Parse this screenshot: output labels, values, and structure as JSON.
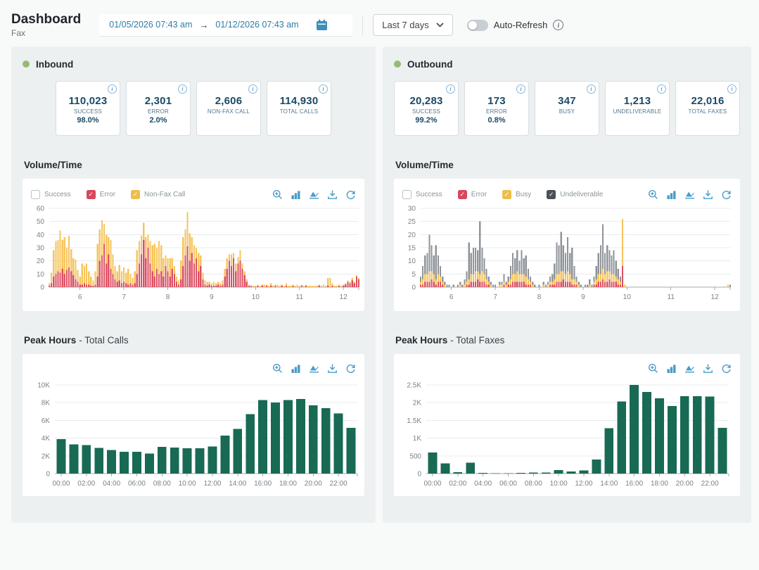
{
  "header": {
    "title": "Dashboard",
    "subtitle": "Fax",
    "date_start": "01/05/2026 07:43 am",
    "date_arrow": "→",
    "date_end": "01/12/2026 07:43 am",
    "range_label": "Last 7 days",
    "auto_refresh_label": "Auto-Refresh",
    "info_icon": "i"
  },
  "inbound": {
    "title": "Inbound",
    "stats": [
      {
        "value": "110,023",
        "label": "SUCCESS",
        "sub": "98.0%"
      },
      {
        "value": "2,301",
        "label": "ERROR",
        "sub": "2.0%"
      },
      {
        "value": "2,606",
        "label": "NON-FAX CALL",
        "sub": ""
      },
      {
        "value": "114,930",
        "label": "TOTAL CALLS",
        "sub": ""
      }
    ],
    "volume_title": "Volume/Time",
    "peak_title": "Peak Hours",
    "peak_subtitle": "- Total Calls",
    "legend": [
      {
        "label": "Success",
        "checked": false,
        "color": "#ffffff"
      },
      {
        "label": "Error",
        "checked": true,
        "color": "#d9475c"
      },
      {
        "label": "Non-Fax Call",
        "checked": true,
        "color": "#edbe4b"
      }
    ]
  },
  "outbound": {
    "title": "Outbound",
    "stats": [
      {
        "value": "20,283",
        "label": "SUCCESS",
        "sub": "99.2%"
      },
      {
        "value": "173",
        "label": "ERROR",
        "sub": "0.8%"
      },
      {
        "value": "347",
        "label": "BUSY",
        "sub": ""
      },
      {
        "value": "1,213",
        "label": "UNDELIVERABLE",
        "sub": ""
      },
      {
        "value": "22,016",
        "label": "TOTAL FAXES",
        "sub": ""
      }
    ],
    "volume_title": "Volume/Time",
    "peak_title": "Peak Hours",
    "peak_subtitle": "- Total Faxes",
    "legend": [
      {
        "label": "Success",
        "checked": false,
        "color": "#ffffff"
      },
      {
        "label": "Error",
        "checked": true,
        "color": "#d9475c"
      },
      {
        "label": "Busy",
        "checked": true,
        "color": "#edbe4b"
      },
      {
        "label": "Undeliverable",
        "checked": true,
        "color": "#4b5157"
      }
    ]
  },
  "toolbar_icons": [
    "zoom-in",
    "bar-chart",
    "area-chart",
    "download",
    "refresh"
  ],
  "chart_data": [
    {
      "id": "inbound-volume",
      "type": "stacked-bar",
      "title": "Volume/Time (Inbound)",
      "xlabel": "",
      "ylabel": "",
      "x_start": 5.3,
      "x_end": 12.35,
      "xticks": [
        6,
        7,
        8,
        9,
        10,
        11,
        12
      ],
      "ylim": [
        0,
        60
      ],
      "yticks": [
        0,
        10,
        20,
        30,
        40,
        50,
        60
      ],
      "legend_position": "top-left",
      "series": [
        {
          "name": "Error",
          "color": "#dc5064",
          "values": [
            1,
            3,
            8,
            10,
            12,
            11,
            14,
            10,
            13,
            15,
            12,
            9,
            6,
            4,
            2,
            2,
            3,
            2,
            2,
            1,
            1,
            2,
            8,
            20,
            24,
            33,
            18,
            25,
            14,
            10,
            6,
            4,
            5,
            3,
            4,
            3,
            2,
            3,
            2,
            3,
            10,
            18,
            25,
            36,
            22,
            30,
            18,
            12,
            8,
            14,
            10,
            12,
            8,
            16,
            12,
            8,
            14,
            10,
            4,
            2,
            6,
            16,
            24,
            31,
            20,
            26,
            18,
            22,
            12,
            16,
            6,
            2,
            1,
            2,
            1,
            1,
            1,
            2,
            1,
            2,
            8,
            14,
            20,
            16,
            22,
            12,
            18,
            20,
            14,
            9,
            4,
            1,
            1,
            0,
            0,
            1,
            0,
            1,
            0,
            1,
            0,
            1,
            0,
            1,
            0,
            0,
            1,
            0,
            1,
            0,
            0,
            1,
            0,
            0,
            0,
            1,
            0,
            1,
            0,
            0,
            0,
            0,
            0,
            1,
            0,
            0,
            0,
            1,
            0,
            1,
            0,
            0,
            1,
            0,
            1,
            2,
            4,
            3,
            5,
            3,
            8,
            6
          ]
        },
        {
          "name": "Non-Fax Call",
          "color": "#f6c45c",
          "values": [
            2,
            8,
            20,
            25,
            24,
            32,
            22,
            28,
            17,
            24,
            17,
            13,
            15,
            9,
            6,
            16,
            13,
            16,
            10,
            7,
            4,
            10,
            25,
            24,
            27,
            15,
            22,
            13,
            22,
            15,
            10,
            8,
            12,
            9,
            11,
            8,
            12,
            7,
            5,
            9,
            18,
            17,
            14,
            13,
            16,
            10,
            17,
            20,
            25,
            16,
            25,
            20,
            14,
            8,
            10,
            14,
            8,
            6,
            4,
            3,
            14,
            22,
            20,
            26,
            21,
            12,
            14,
            8,
            14,
            8,
            5,
            3,
            3,
            2,
            2,
            3,
            2,
            2,
            2,
            3,
            6,
            8,
            5,
            9,
            4,
            6,
            5,
            8,
            4,
            3,
            2,
            1,
            0,
            1,
            1,
            1,
            1,
            1,
            2,
            1,
            1,
            2,
            1,
            1,
            2,
            1,
            1,
            1,
            2,
            1,
            1,
            1,
            1,
            2,
            1,
            1,
            1,
            1,
            1,
            1,
            1,
            1,
            1,
            1,
            1,
            2,
            1,
            6,
            7,
            2,
            1,
            1,
            1,
            1,
            1,
            1,
            1,
            1,
            2,
            1,
            1,
            1
          ]
        }
      ]
    },
    {
      "id": "outbound-volume",
      "type": "stacked-bar",
      "title": "Volume/Time (Outbound)",
      "xlabel": "",
      "ylabel": "",
      "x_start": 5.3,
      "x_end": 12.35,
      "xticks": [
        6,
        7,
        8,
        9,
        10,
        11,
        12
      ],
      "ylim": [
        0,
        30
      ],
      "yticks": [
        0,
        5,
        10,
        15,
        20,
        25,
        30
      ],
      "legend_position": "top-left",
      "series": [
        {
          "name": "Error",
          "color": "#dc5064",
          "values": [
            1,
            1,
            2,
            2,
            2,
            3,
            2,
            1,
            2,
            2,
            1,
            0,
            0,
            0,
            0,
            0,
            0,
            0,
            0,
            0,
            0,
            1,
            1,
            2,
            2,
            2,
            3,
            2,
            2,
            2,
            1,
            1,
            0,
            0,
            0,
            0,
            0,
            0,
            1,
            0,
            1,
            1,
            2,
            2,
            2,
            2,
            2,
            2,
            1,
            1,
            1,
            0,
            0,
            0,
            0,
            0,
            0,
            0,
            0,
            1,
            1,
            1,
            2,
            2,
            2,
            3,
            2,
            2,
            2,
            1,
            1,
            1,
            0,
            0,
            0,
            0,
            0,
            0,
            0,
            1,
            1,
            2,
            2,
            3,
            2,
            2,
            3,
            2,
            2,
            2,
            1,
            1,
            8,
            0,
            0,
            0,
            0,
            0,
            0,
            0,
            0,
            0,
            0,
            0,
            0,
            0,
            0,
            0,
            0,
            0,
            0,
            0,
            0,
            0,
            0,
            0,
            0,
            0,
            0,
            0,
            0,
            0,
            0,
            0,
            0,
            0,
            0,
            0,
            0,
            0,
            0,
            0,
            0,
            0,
            0,
            0,
            0,
            0,
            0,
            0,
            0,
            0
          ]
        },
        {
          "name": "Busy",
          "color": "#f6c45c",
          "values": [
            1,
            2,
            3,
            3,
            4,
            3,
            3,
            2,
            3,
            2,
            1,
            1,
            0,
            0,
            0,
            0,
            0,
            0,
            1,
            0,
            1,
            1,
            2,
            3,
            3,
            4,
            3,
            3,
            4,
            3,
            2,
            1,
            1,
            0,
            0,
            0,
            1,
            1,
            1,
            1,
            1,
            2,
            3,
            3,
            4,
            3,
            3,
            3,
            3,
            2,
            1,
            1,
            0,
            0,
            0,
            0,
            1,
            0,
            1,
            1,
            1,
            2,
            3,
            3,
            4,
            3,
            3,
            4,
            3,
            2,
            2,
            1,
            1,
            0,
            0,
            0,
            0,
            1,
            0,
            1,
            2,
            3,
            3,
            4,
            3,
            4,
            3,
            3,
            3,
            2,
            2,
            1,
            18,
            1,
            0,
            0,
            0,
            0,
            0,
            0,
            0,
            0,
            0,
            0,
            0,
            0,
            0,
            0,
            0,
            0,
            0,
            0,
            0,
            0,
            0,
            0,
            0,
            0,
            0,
            0,
            0,
            0,
            0,
            0,
            0,
            0,
            0,
            0,
            0,
            0,
            0,
            0,
            0,
            0,
            0,
            0,
            0,
            0,
            0,
            0,
            1,
            0
          ]
        },
        {
          "name": "Undeliverable",
          "color": "#8f949a",
          "values": [
            2,
            5,
            7,
            8,
            14,
            10,
            7,
            13,
            7,
            4,
            2,
            1,
            1,
            1,
            0,
            1,
            0,
            1,
            1,
            1,
            2,
            4,
            14,
            8,
            10,
            9,
            8,
            20,
            9,
            6,
            4,
            2,
            1,
            1,
            1,
            0,
            1,
            1,
            3,
            1,
            2,
            5,
            8,
            6,
            8,
            5,
            9,
            6,
            8,
            4,
            2,
            1,
            1,
            0,
            1,
            0,
            1,
            1,
            1,
            2,
            3,
            6,
            12,
            11,
            15,
            10,
            8,
            13,
            8,
            12,
            5,
            2,
            1,
            1,
            0,
            1,
            1,
            2,
            1,
            2,
            5,
            8,
            11,
            17,
            8,
            10,
            8,
            7,
            9,
            6,
            4,
            2,
            0,
            0,
            0,
            0,
            0,
            0,
            0,
            0,
            0,
            0,
            0,
            0,
            0,
            0,
            0,
            0,
            0,
            0,
            0,
            0,
            0,
            0,
            0,
            0,
            0,
            0,
            0,
            0,
            0,
            0,
            0,
            0,
            0,
            0,
            0,
            0,
            0,
            0,
            0,
            0,
            0,
            0,
            0,
            0,
            0,
            0,
            0,
            0,
            0,
            1
          ]
        }
      ]
    },
    {
      "id": "inbound-peak",
      "type": "bar",
      "title": "Peak Hours - Total Calls",
      "xlabel": "",
      "ylabel": "",
      "categories": [
        "00:00",
        "01:00",
        "02:00",
        "03:00",
        "04:00",
        "05:00",
        "06:00",
        "07:00",
        "08:00",
        "09:00",
        "10:00",
        "11:00",
        "12:00",
        "13:00",
        "14:00",
        "15:00",
        "16:00",
        "17:00",
        "18:00",
        "19:00",
        "20:00",
        "21:00",
        "22:00",
        "23:00"
      ],
      "values": [
        3900,
        3300,
        3200,
        2900,
        2650,
        2450,
        2450,
        2250,
        3000,
        2950,
        2850,
        2850,
        3050,
        4300,
        5050,
        6700,
        8300,
        8000,
        8300,
        8400,
        7700,
        7400,
        6800,
        5150
      ],
      "color": "#186a54",
      "ylim": [
        0,
        10000
      ],
      "yticks": [
        {
          "v": 0,
          "label": "0"
        },
        {
          "v": 2000,
          "label": "2K"
        },
        {
          "v": 4000,
          "label": "4K"
        },
        {
          "v": 6000,
          "label": "6K"
        },
        {
          "v": 8000,
          "label": "8K"
        },
        {
          "v": 10000,
          "label": "10K"
        }
      ],
      "label_every": 2
    },
    {
      "id": "outbound-peak",
      "type": "bar",
      "title": "Peak Hours - Total Faxes",
      "xlabel": "",
      "ylabel": "",
      "categories": [
        "00:00",
        "01:00",
        "02:00",
        "03:00",
        "04:00",
        "05:00",
        "06:00",
        "07:00",
        "08:00",
        "09:00",
        "10:00",
        "11:00",
        "12:00",
        "13:00",
        "14:00",
        "15:00",
        "16:00",
        "17:00",
        "18:00",
        "19:00",
        "20:00",
        "21:00",
        "22:00",
        "23:00"
      ],
      "values": [
        600,
        290,
        40,
        310,
        15,
        10,
        8,
        15,
        30,
        25,
        100,
        60,
        90,
        400,
        1280,
        2030,
        2500,
        2300,
        2120,
        1900,
        2180,
        2180,
        2170,
        1290
      ],
      "color": "#186a54",
      "ylim": [
        0,
        2500
      ],
      "yticks": [
        {
          "v": 0,
          "label": "0"
        },
        {
          "v": 500,
          "label": "500"
        },
        {
          "v": 1000,
          "label": "1K"
        },
        {
          "v": 1500,
          "label": "1.5K"
        },
        {
          "v": 2000,
          "label": "2K"
        },
        {
          "v": 2500,
          "label": "2.5K"
        }
      ],
      "label_every": 2
    }
  ]
}
